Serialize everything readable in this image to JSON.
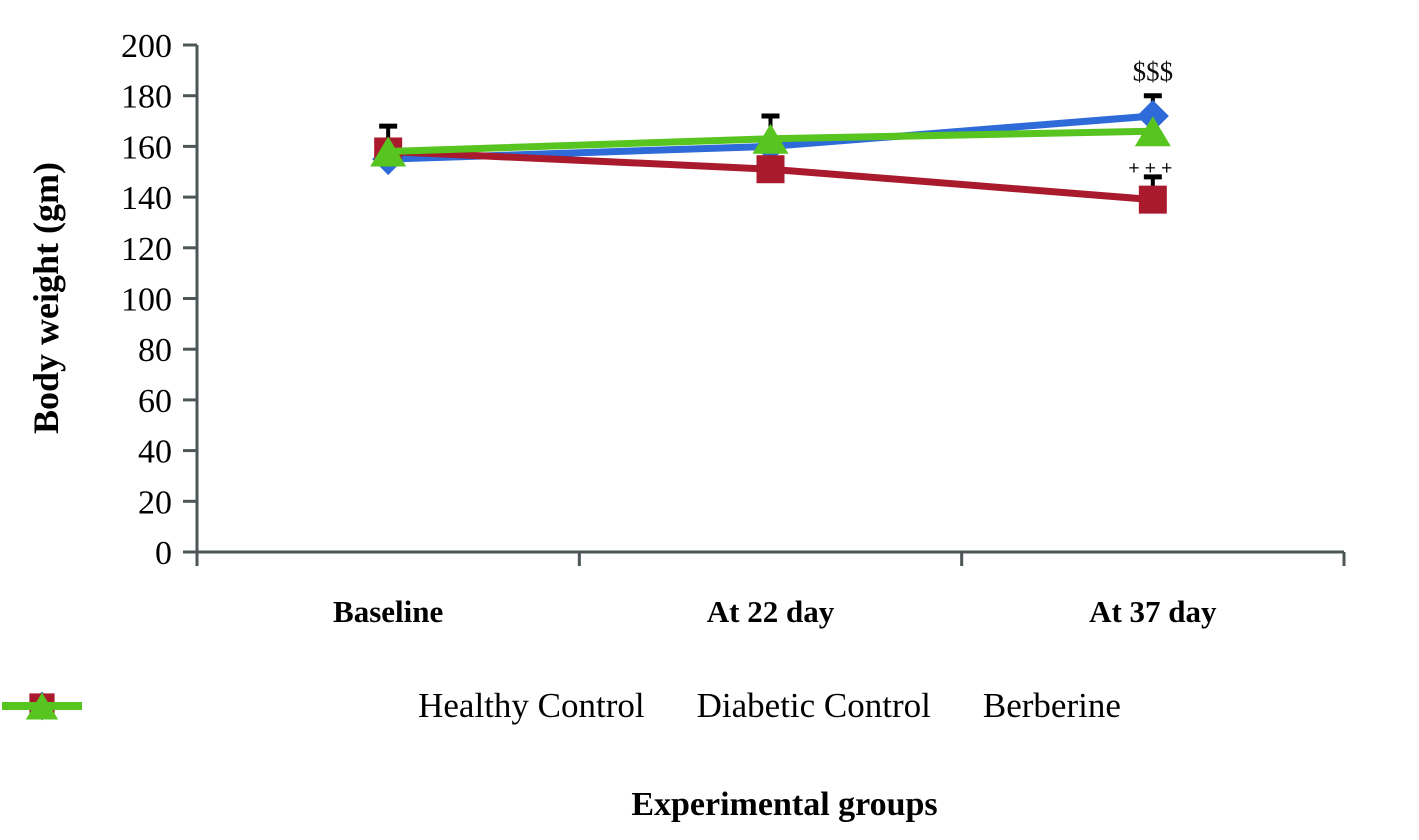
{
  "chart_data": {
    "type": "line",
    "title": "",
    "ylabel": "Body weight (gm)",
    "xlabel": "Experimental groups",
    "categories": [
      "Baseline",
      "At 22 day",
      "At 37 day"
    ],
    "ylim": [
      0,
      200
    ],
    "yticks": [
      0,
      20,
      40,
      60,
      80,
      100,
      120,
      140,
      160,
      180,
      200
    ],
    "grid": false,
    "legend_position": "bottom",
    "axis_color": "#4d5656",
    "error_bar_color": "#000000",
    "series": [
      {
        "name": "Healthy Control",
        "marker": "diamond",
        "color": "#2f6bd8",
        "values": [
          155,
          160,
          172
        ],
        "errors_plus": [
          0,
          0,
          8
        ]
      },
      {
        "name": "Diabetic Control",
        "marker": "square",
        "color": "#aa1a2d",
        "values": [
          158,
          151,
          139
        ],
        "errors_plus": [
          10,
          0,
          9
        ]
      },
      {
        "name": "Berberine",
        "marker": "triangle",
        "color": "#57c420",
        "values": [
          158,
          163,
          166
        ],
        "errors_plus": [
          0,
          9,
          0
        ]
      }
    ],
    "annotations": [
      {
        "text": "$$$",
        "x_index": 2,
        "y_value": 186,
        "style": "dollar"
      },
      {
        "text": "+++",
        "x_index": 2,
        "y_value": 149,
        "style": "plus"
      }
    ]
  }
}
